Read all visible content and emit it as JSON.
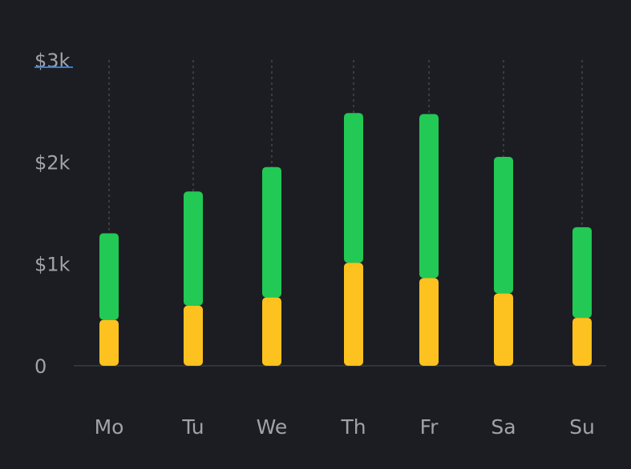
{
  "colors": {
    "background": "#1c1d22",
    "baseline": "#3a3c43",
    "gridline": "#44464d",
    "label": "#a0a3aa",
    "green": "#22c955",
    "yellow": "#fdc21f",
    "top_label_underline": "#3a7bd5"
  },
  "chart_data": {
    "type": "bar",
    "stacked": true,
    "categories": [
      "Mo",
      "Tu",
      "We",
      "Th",
      "Fr",
      "Sa",
      "Su"
    ],
    "series": [
      {
        "color": "#fdc21f",
        "values": [
          450,
          590,
          670,
          1010,
          860,
          710,
          470
        ]
      },
      {
        "color": "#22c955",
        "values": [
          850,
          1120,
          1280,
          1470,
          1610,
          1340,
          890
        ]
      }
    ],
    "y_ticks": [
      {
        "value": 0,
        "label": "0"
      },
      {
        "value": 1000,
        "label": "$1k"
      },
      {
        "value": 2000,
        "label": "$2k"
      },
      {
        "value": 3000,
        "label": "$3k"
      }
    ],
    "ylim": [
      0,
      3000
    ],
    "grid": "vertical dotted lines per category",
    "legend": "none"
  }
}
